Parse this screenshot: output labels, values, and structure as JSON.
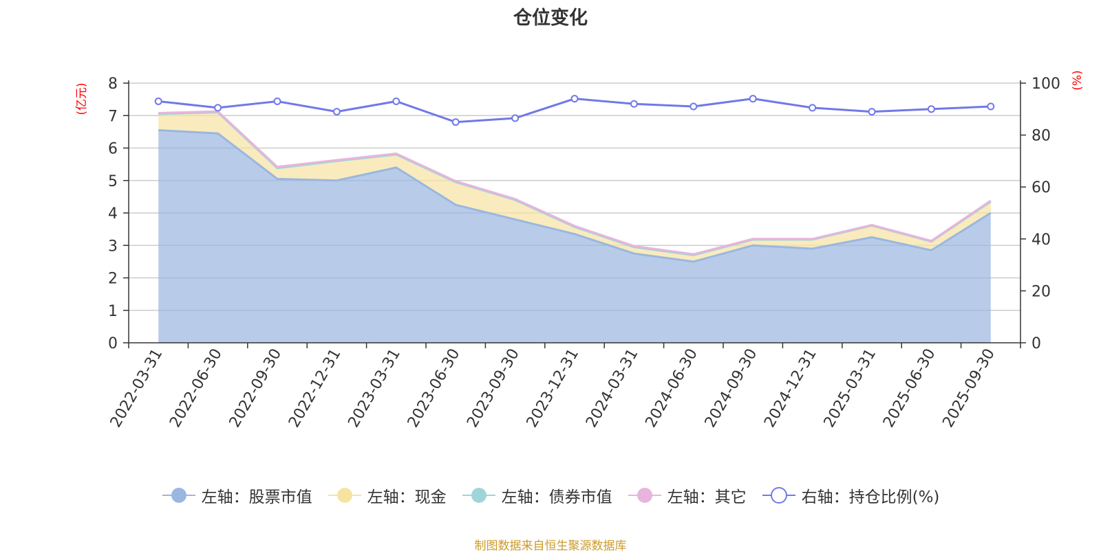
{
  "chart_data": {
    "type": "area",
    "title": "仓位变化",
    "left_axis": {
      "unit": "(亿元)",
      "ylim": [
        0,
        8
      ],
      "ticks": [
        "0",
        "1",
        "2",
        "3",
        "4",
        "5",
        "6",
        "7",
        "8"
      ]
    },
    "right_axis": {
      "unit": "(%)",
      "ylim": [
        0,
        100
      ],
      "ticks": [
        "0",
        "20",
        "40",
        "60",
        "80",
        "100"
      ]
    },
    "categories": [
      "2022-03-31",
      "2022-06-30",
      "2022-09-30",
      "2022-12-31",
      "2023-03-31",
      "2023-06-30",
      "2023-09-30",
      "2023-12-31",
      "2024-03-31",
      "2024-06-30",
      "2024-09-30",
      "2024-12-31",
      "2025-03-31",
      "2025-06-30",
      "2025-09-30"
    ],
    "series": [
      {
        "name": "左轴：股票市值",
        "axis": "left",
        "stacked": true,
        "color": "#9ab7e0",
        "values": [
          6.55,
          6.45,
          5.05,
          5.0,
          5.4,
          4.25,
          3.8,
          3.35,
          2.75,
          2.5,
          3.0,
          2.9,
          3.25,
          2.85,
          4.0
        ]
      },
      {
        "name": "左轴：现金",
        "axis": "left",
        "stacked": true,
        "color": "#f7e3a1",
        "values": [
          0.5,
          0.65,
          0.33,
          0.6,
          0.4,
          0.7,
          0.6,
          0.22,
          0.2,
          0.2,
          0.18,
          0.28,
          0.36,
          0.27,
          0.35
        ]
      },
      {
        "name": "左轴：债券市值",
        "axis": "left",
        "stacked": true,
        "color": "#9fd5d9",
        "values": [
          0,
          0,
          0,
          0,
          0,
          0,
          0,
          0,
          0,
          0,
          0,
          0,
          0,
          0,
          0
        ]
      },
      {
        "name": "左轴：其它",
        "axis": "left",
        "stacked": true,
        "color": "#e8b4dc",
        "values": [
          0.03,
          0.03,
          0.04,
          0.03,
          0.03,
          0.03,
          0.03,
          0.03,
          0.03,
          0.03,
          0.02,
          0.02,
          0.02,
          0.02,
          0.03
        ]
      },
      {
        "name": "右轴：持仓比例(%)",
        "axis": "right",
        "stacked": false,
        "color": "#7178e8",
        "values": [
          93,
          90.5,
          93,
          89,
          93,
          85,
          86.5,
          94,
          92,
          91,
          94,
          90.5,
          89,
          90,
          91
        ]
      }
    ],
    "grid": true,
    "legend_position": "bottom"
  },
  "source": "制图数据来自恒生聚源数据库"
}
